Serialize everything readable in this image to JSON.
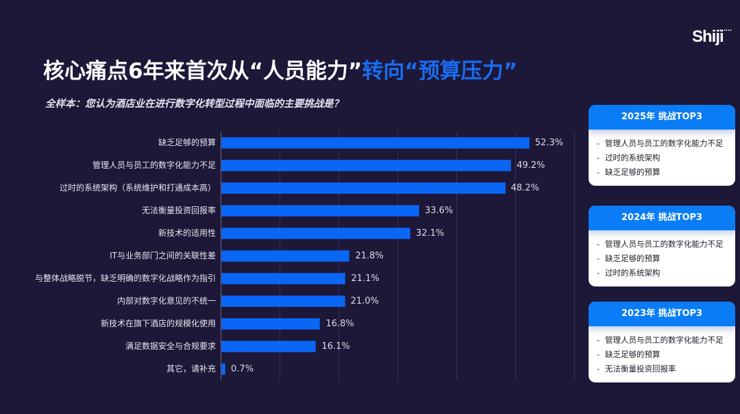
{
  "brand": {
    "logo_text": "Shiji",
    "logo_dots": "••••••"
  },
  "header": {
    "title_main": "核心痛点6年来首次从“人员能力”",
    "title_highlight": "转向“预算压力”",
    "subtitle": "全样本：您认为酒店业在进行数字化转型过程中面临的主要挑战是？"
  },
  "colors": {
    "background": "#1d1738",
    "bar": "#0a66f5",
    "highlight": "#1a6cf0",
    "card_header": "#0a7cf5"
  },
  "chart_data": {
    "type": "bar",
    "orientation": "horizontal",
    "title": "全样本：您认为酒店业在进行数字化转型过程中面临的主要挑战是？",
    "xlabel": "",
    "ylabel": "",
    "xlim": [
      0,
      60
    ],
    "grid": true,
    "grid_step": 10,
    "unit": "%",
    "categories": [
      "缺乏足够的预算",
      "管理人员与员工的数字化能力不足",
      "过时的系统架构（系统维护和打通成本高）",
      "无法衡量投资回报率",
      "新技术的适用性",
      "IT与业务部门之间的关联性差",
      "与整体战略脱节，缺乏明确的数字化战略作为指引",
      "内部对数字化意见的不统一",
      "新技术在旗下酒店的规模化使用",
      "满足数据安全与合规要求",
      "其它，请补充"
    ],
    "values": [
      52.3,
      49.2,
      48.2,
      33.6,
      32.1,
      21.8,
      21.1,
      21.0,
      16.8,
      16.1,
      0.7
    ],
    "value_labels": [
      "52.3%",
      "49.2%",
      "48.2%",
      "33.6%",
      "32.1%",
      "21.8%",
      "21.1%",
      "21.0%",
      "16.8%",
      "16.1%",
      "0.7%"
    ]
  },
  "cards": [
    {
      "title": "2025年 挑战TOP3",
      "items": [
        "管理人员与员工的数字化能力不足",
        "过时的系统架构",
        "缺乏足够的预算"
      ]
    },
    {
      "title": "2024年 挑战TOP3",
      "items": [
        "管理人员与员工的数字化能力不足",
        "缺乏足够的预算",
        "过时的系统架构"
      ]
    },
    {
      "title": "2023年 挑战TOP3",
      "items": [
        "管理人员与员工的数字化能力不足",
        "缺乏足够的预算",
        "无法衡量投资回报率"
      ]
    }
  ],
  "card_bullet": "-"
}
